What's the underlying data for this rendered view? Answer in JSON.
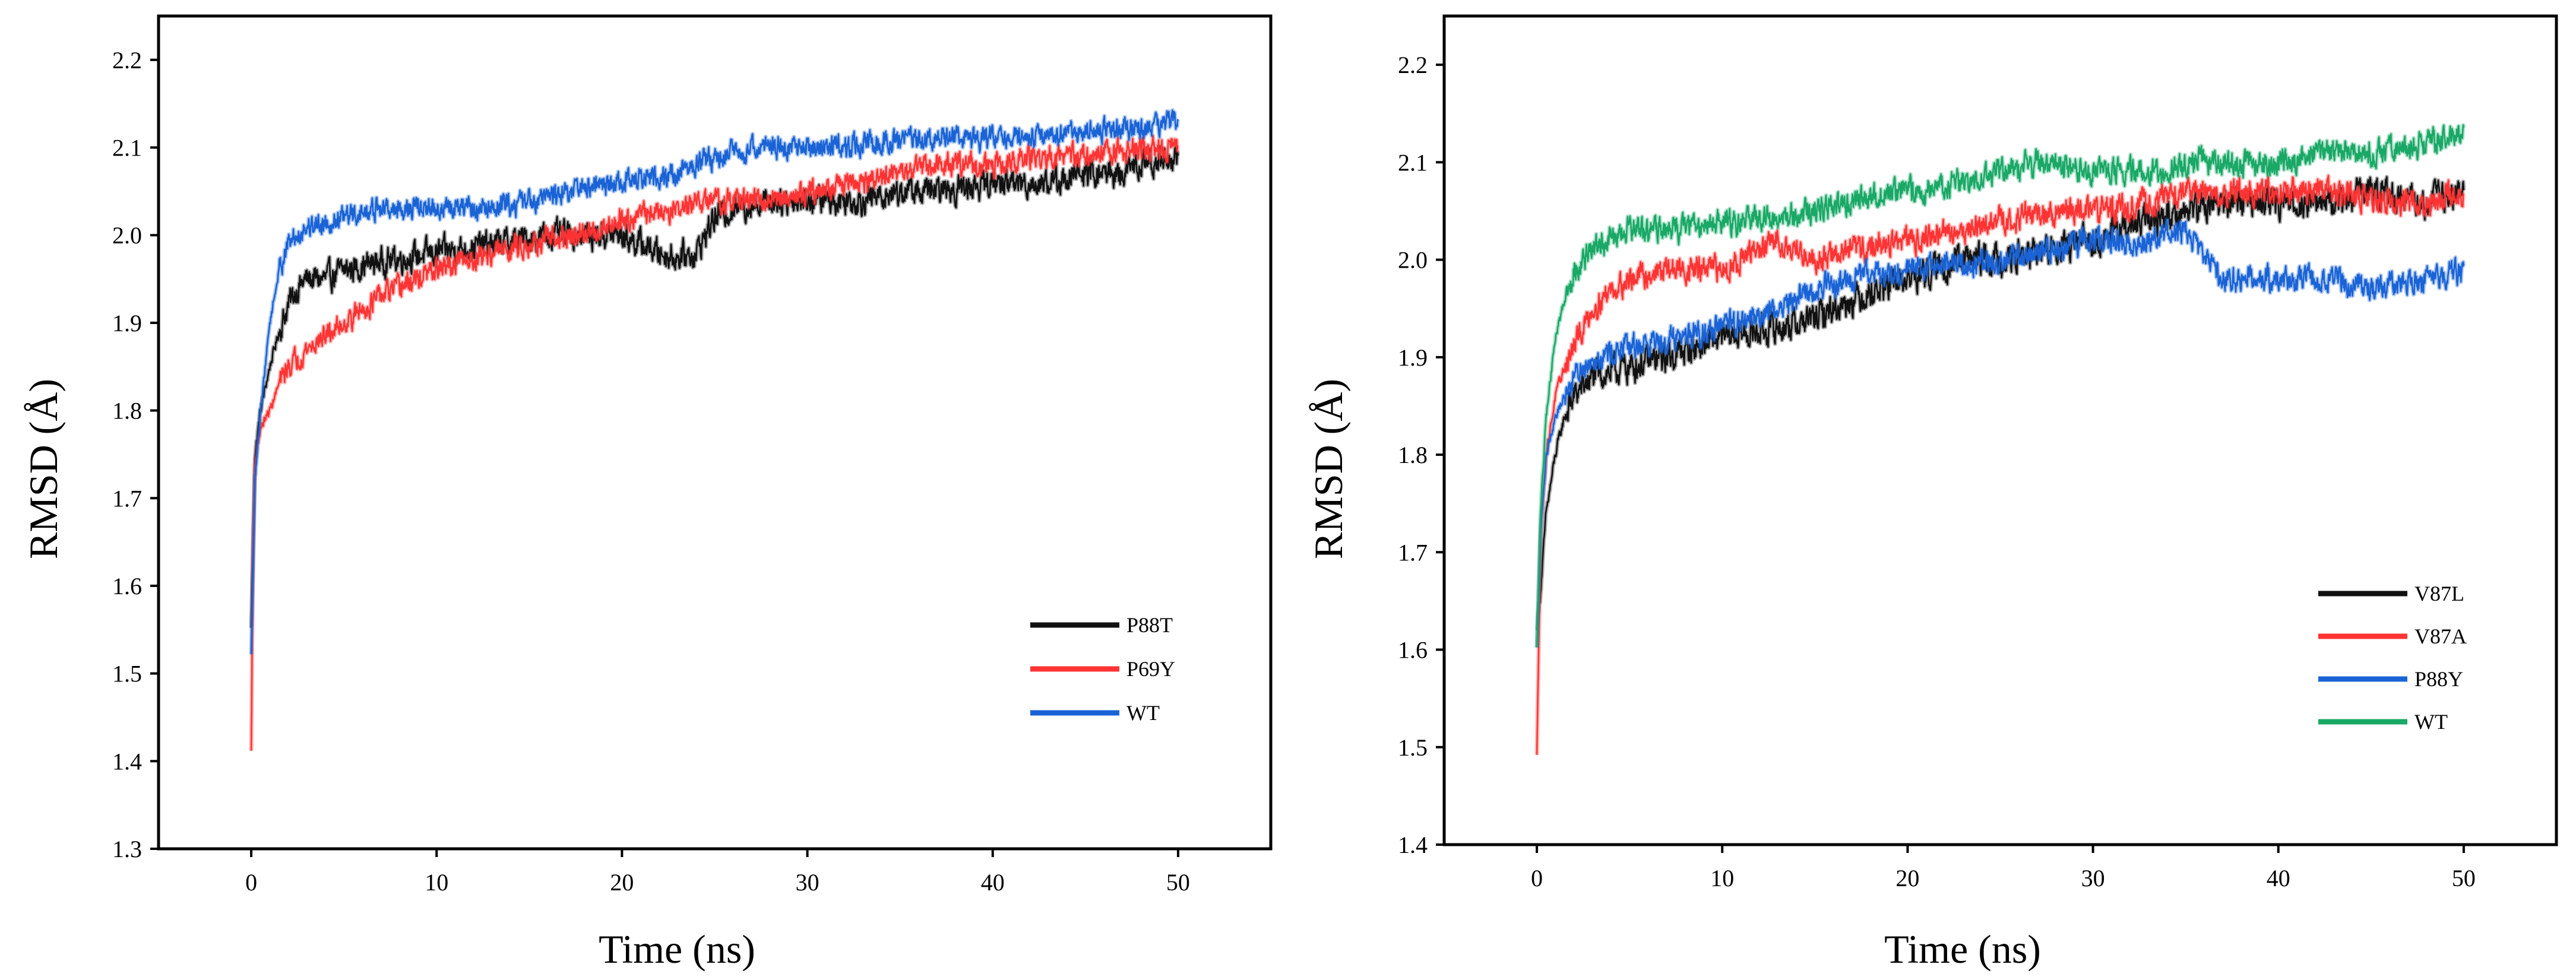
{
  "figure": {
    "description_free": true
  },
  "chart_data": [
    {
      "type": "line",
      "title": "",
      "xlabel": "Time (ns)",
      "ylabel": "RMSD (Å)",
      "xlim": [
        -5,
        55
      ],
      "ylim": [
        1.3,
        2.25
      ],
      "xticks": [
        0,
        10,
        20,
        30,
        40,
        50
      ],
      "yticks": [
        1.3,
        1.4,
        1.5,
        1.6,
        1.7,
        1.8,
        1.9,
        2.0,
        2.1,
        2.2
      ],
      "xtick_labels": [
        "0",
        "10",
        "20",
        "30",
        "40",
        "50"
      ],
      "ytick_labels": [
        "1.3",
        "1.4",
        "1.5",
        "1.6",
        "1.7",
        "1.8",
        "1.9",
        "2.0",
        "2.1",
        "2.2"
      ],
      "grid": false,
      "legend_position": "lower-right",
      "series": [
        {
          "name": "P88T",
          "color": "#111111",
          "noise": 0.012,
          "x": [
            0,
            0.2,
            0.5,
            1,
            1.5,
            2,
            2.5,
            3,
            4,
            5,
            7,
            10,
            13,
            16,
            18,
            20,
            22,
            23,
            24,
            25,
            26,
            28,
            30,
            33,
            35,
            37,
            40,
            43,
            45,
            47,
            48,
            50
          ],
          "values": [
            1.55,
            1.75,
            1.8,
            1.85,
            1.89,
            1.92,
            1.94,
            1.95,
            1.95,
            1.96,
            1.97,
            1.98,
            1.99,
            2.0,
            2.0,
            2.0,
            1.98,
            1.975,
            1.98,
            2.02,
            2.03,
            2.04,
            2.04,
            2.04,
            2.05,
            2.05,
            2.06,
            2.06,
            2.07,
            2.07,
            2.08,
            2.09
          ]
        },
        {
          "name": "P69Y",
          "color": "#ff3333",
          "noise": 0.01,
          "x": [
            0,
            0.1,
            0.2,
            0.5,
            1,
            1.5,
            2,
            3,
            5,
            7,
            10,
            13,
            15,
            18,
            20,
            23,
            25,
            28,
            30,
            33,
            35,
            37,
            40,
            43,
            45,
            48,
            50
          ],
          "values": [
            1.41,
            1.65,
            1.74,
            1.78,
            1.8,
            1.83,
            1.85,
            1.87,
            1.9,
            1.93,
            1.96,
            1.98,
            1.99,
            2.0,
            2.02,
            2.03,
            2.04,
            2.04,
            2.05,
            2.06,
            2.07,
            2.08,
            2.08,
            2.09,
            2.09,
            2.1,
            2.1
          ]
        },
        {
          "name": "WT",
          "color": "#1a63d6",
          "noise": 0.01,
          "x": [
            0,
            0.2,
            0.5,
            1,
            1.5,
            2,
            3,
            5,
            7,
            10,
            13,
            15,
            17,
            20,
            23,
            25,
            27,
            30,
            32,
            35,
            37,
            40,
            43,
            45,
            48,
            50
          ],
          "values": [
            1.52,
            1.72,
            1.8,
            1.9,
            1.96,
            1.99,
            2.01,
            2.02,
            2.03,
            2.03,
            2.03,
            2.04,
            2.05,
            2.06,
            2.07,
            2.09,
            2.1,
            2.1,
            2.1,
            2.11,
            2.11,
            2.11,
            2.11,
            2.12,
            2.12,
            2.13
          ]
        }
      ]
    },
    {
      "type": "line",
      "title": "",
      "xlabel": "Time (ns)",
      "ylabel": "RMSD (Å)",
      "xlim": [
        -5,
        55
      ],
      "ylim": [
        1.4,
        2.25
      ],
      "xticks": [
        0,
        10,
        20,
        30,
        40,
        50
      ],
      "yticks": [
        1.4,
        1.5,
        1.6,
        1.7,
        1.8,
        1.9,
        2.0,
        2.1,
        2.2
      ],
      "xtick_labels": [
        "0",
        "10",
        "20",
        "30",
        "40",
        "50"
      ],
      "ytick_labels": [
        "1.4",
        "1.5",
        "1.6",
        "1.7",
        "1.8",
        "1.9",
        "2.0",
        "2.1",
        "2.2"
      ],
      "grid": false,
      "legend_position": "lower-right",
      "series": [
        {
          "name": "V87L",
          "color": "#111111",
          "noise": 0.012,
          "x": [
            0,
            0.2,
            0.5,
            1,
            1.5,
            2,
            3,
            5,
            7,
            10,
            13,
            15,
            17,
            20,
            23,
            25,
            28,
            30,
            33,
            35,
            37,
            40,
            43,
            45,
            48,
            50
          ],
          "values": [
            1.62,
            1.66,
            1.74,
            1.8,
            1.84,
            1.86,
            1.88,
            1.89,
            1.9,
            1.92,
            1.93,
            1.94,
            1.96,
            1.98,
            2.0,
            2.0,
            2.01,
            2.02,
            2.04,
            2.05,
            2.06,
            2.06,
            2.06,
            2.07,
            2.06,
            2.07
          ]
        },
        {
          "name": "V87A",
          "color": "#ff3333",
          "noise": 0.01,
          "x": [
            0,
            0.2,
            0.5,
            1,
            1.5,
            2,
            3,
            4,
            5,
            7,
            10,
            12,
            13,
            15,
            17,
            20,
            23,
            25,
            28,
            30,
            33,
            35,
            37,
            40,
            43,
            45,
            48,
            50
          ],
          "values": [
            1.49,
            1.72,
            1.8,
            1.86,
            1.89,
            1.91,
            1.95,
            1.97,
            1.98,
            1.99,
            1.99,
            2.01,
            2.02,
            2.0,
            2.01,
            2.02,
            2.03,
            2.04,
            2.05,
            2.05,
            2.06,
            2.07,
            2.07,
            2.07,
            2.07,
            2.06,
            2.06,
            2.07
          ]
        },
        {
          "name": "P88Y",
          "color": "#1a63d6",
          "noise": 0.01,
          "x": [
            0,
            0.2,
            0.5,
            1,
            1.5,
            2,
            3,
            5,
            7,
            10,
            13,
            15,
            17,
            20,
            23,
            25,
            28,
            30,
            33,
            34,
            35,
            36,
            37,
            38,
            40,
            43,
            45,
            48,
            50
          ],
          "values": [
            1.6,
            1.72,
            1.8,
            1.84,
            1.86,
            1.88,
            1.9,
            1.91,
            1.92,
            1.93,
            1.95,
            1.97,
            1.98,
            1.99,
            1.995,
            2.0,
            2.01,
            2.02,
            2.02,
            2.03,
            2.03,
            2.0,
            1.98,
            1.98,
            1.98,
            1.98,
            1.97,
            1.98,
            1.99
          ]
        },
        {
          "name": "WT",
          "color": "#19a866",
          "noise": 0.01,
          "x": [
            0,
            0.2,
            0.5,
            1,
            1.5,
            2,
            3,
            5,
            7,
            10,
            13,
            15,
            17,
            20,
            23,
            25,
            27,
            30,
            33,
            35,
            37,
            40,
            43,
            45,
            48,
            50
          ],
          "values": [
            1.6,
            1.74,
            1.84,
            1.92,
            1.96,
            1.99,
            2.01,
            2.03,
            2.03,
            2.04,
            2.04,
            2.05,
            2.06,
            2.07,
            2.08,
            2.09,
            2.1,
            2.09,
            2.09,
            2.1,
            2.1,
            2.1,
            2.11,
            2.11,
            2.12,
            2.13
          ]
        }
      ]
    }
  ]
}
